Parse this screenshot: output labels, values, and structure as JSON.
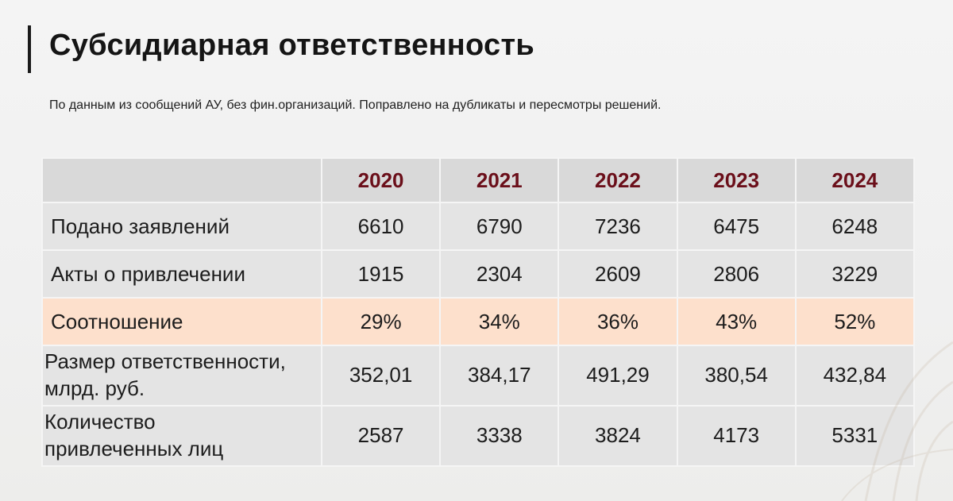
{
  "slide": {
    "title": "Субсидиарная ответственность",
    "subtitle": "По данным из сообщений АУ, без фин.организаций. Поправлено на дубликаты и пересмотры решений."
  },
  "table": {
    "years": [
      "2020",
      "2021",
      "2022",
      "2023",
      "2024"
    ],
    "rows": [
      {
        "label": "Подано заявлений",
        "values": [
          "6610",
          "6790",
          "7236",
          "6475",
          "6248"
        ]
      },
      {
        "label": "Акты о привлечении",
        "values": [
          "1915",
          "2304",
          "2609",
          "2806",
          "3229"
        ]
      },
      {
        "label": "Соотношение",
        "values": [
          "29%",
          "34%",
          "36%",
          "43%",
          "52%"
        ]
      },
      {
        "label_line1": "Размер ответственности,",
        "label_line2": "млрд. руб.",
        "values": [
          "352,01",
          "384,17",
          "491,29",
          "380,54",
          "432,84"
        ]
      },
      {
        "label_line1": "Количество",
        "label_line2": "привлеченных лиц",
        "values": [
          "2587",
          "3338",
          "3824",
          "4173",
          "5331"
        ]
      }
    ]
  },
  "colors": {
    "header_year_text": "#6b0f1a",
    "header_bg": "#d9d9d9",
    "row_bg": "#e4e4e4",
    "highlight_row_bg": "#fde0cc",
    "title_accent_bar": "#1a1a1a"
  }
}
